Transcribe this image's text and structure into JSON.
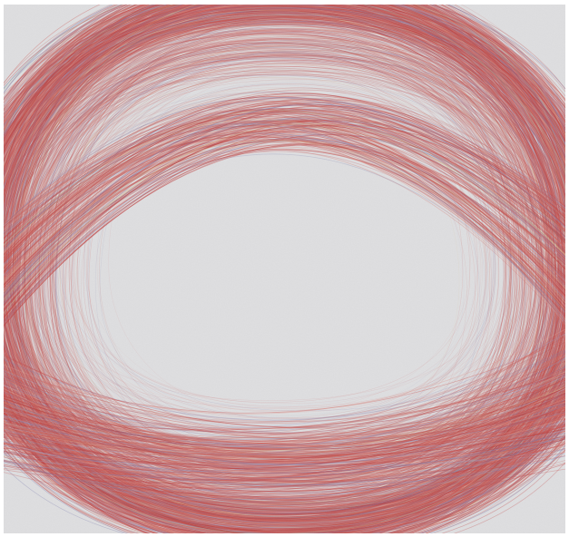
{
  "image": {
    "subject": "abstract-colored-pencil-loops",
    "background_color": "#dedee0",
    "frame_color": "#ffffff",
    "stroke_palette": [
      "#c44a4a",
      "#d06b66",
      "#b84040",
      "#7f7fae",
      "#a1a3c4",
      "#e09a8e",
      "#d9c193",
      "#9bb09a",
      "#c97a74"
    ]
  }
}
